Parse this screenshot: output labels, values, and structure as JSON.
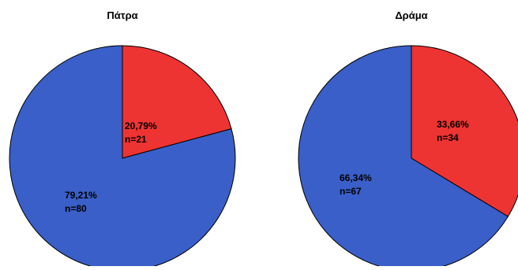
{
  "chart_data": [
    {
      "type": "pie",
      "title": "Πάτρα",
      "slices": [
        {
          "percent_label": "20,79%",
          "n_label": "n=21",
          "percent": 20.79,
          "n": 21,
          "color": "#ee3333"
        },
        {
          "percent_label": "79,21%",
          "n_label": "n=80",
          "percent": 79.21,
          "n": 80,
          "color": "#3a5fc8"
        }
      ]
    },
    {
      "type": "pie",
      "title": "Δράμα",
      "slices": [
        {
          "percent_label": "33,66%",
          "n_label": "n=34",
          "percent": 33.66,
          "n": 34,
          "color": "#ee3333"
        },
        {
          "percent_label": "66,34%",
          "n_label": "n=67",
          "percent": 66.34,
          "n": 67,
          "color": "#3a5fc8"
        }
      ]
    }
  ]
}
